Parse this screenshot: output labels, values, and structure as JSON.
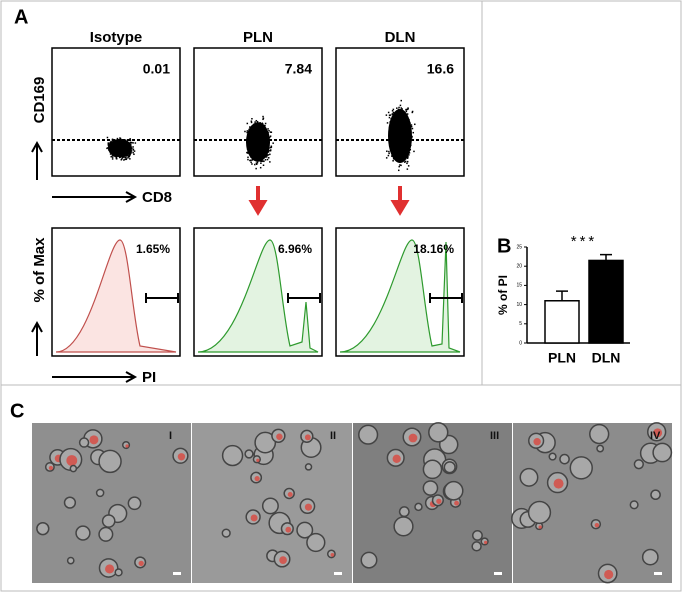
{
  "panel_labels": [
    "A",
    "B",
    "C"
  ],
  "flow": {
    "columns": [
      "Isotype",
      "PLN",
      "DLN"
    ],
    "dot_values": [
      "0.01",
      "7.84",
      "16.6"
    ],
    "hist_values": [
      "1.65%",
      "6.96%",
      "18.16%"
    ],
    "dot_y_label": "CD169",
    "dot_x_label": "CD8",
    "hist_y_label": "% of Max",
    "hist_x_label": "PI"
  },
  "chart_data": {
    "type": "bar",
    "y_label": "% of PI",
    "annotation": "***",
    "categories": [
      "PLN",
      "DLN"
    ],
    "values": [
      11,
      21.5
    ],
    "errors": [
      2.5,
      1.5
    ],
    "colors": [
      "#ffffff",
      "#000000"
    ],
    "ylim": [
      0,
      25
    ],
    "yticks": [
      0,
      5,
      10,
      15,
      20,
      25
    ]
  },
  "micrographs": {
    "labels": [
      "I",
      "II",
      "III",
      "IV"
    ]
  }
}
